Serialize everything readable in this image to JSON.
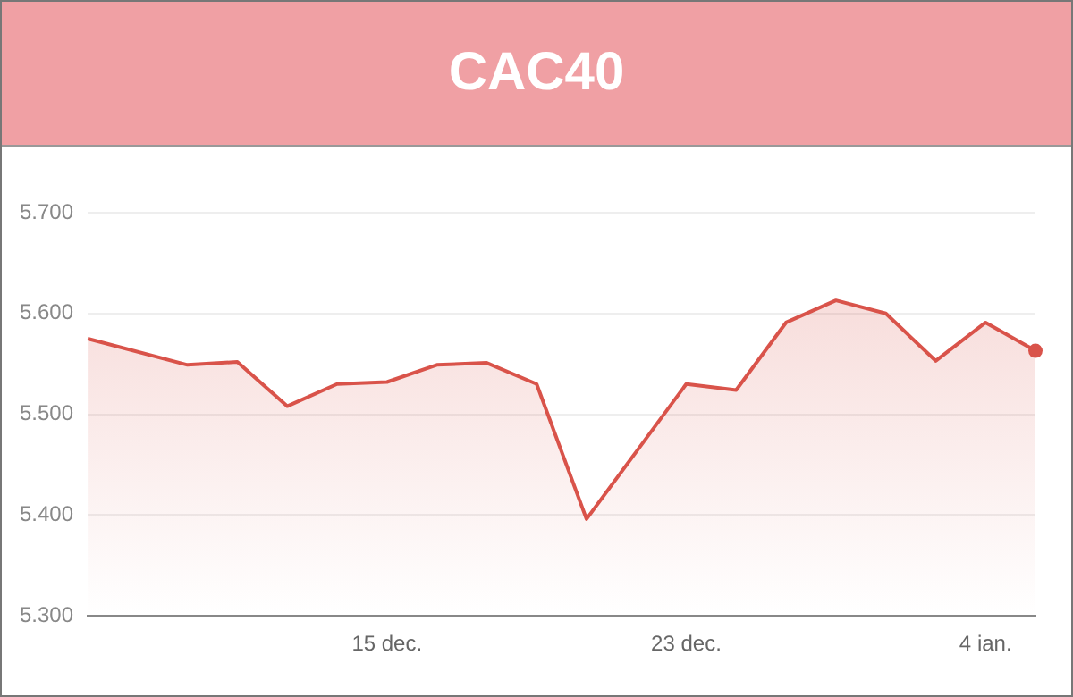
{
  "chart_data": {
    "type": "area",
    "title": "CAC40",
    "categories": [
      null,
      null,
      null,
      null,
      null,
      null,
      "15 dec.",
      null,
      null,
      null,
      null,
      null,
      "23 dec.",
      null,
      null,
      null,
      null,
      null,
      "4 ian.",
      null
    ],
    "series": [
      {
        "color": "#d9534a",
        "values": [
          5575,
          null,
          5549,
          5552,
          5508,
          5530,
          5532,
          5549,
          5551,
          5530,
          5396,
          5463,
          5530,
          5524,
          5591,
          5613,
          5600,
          5553,
          5591,
          5563
        ]
      }
    ],
    "ylim": [
      5300,
      5700
    ],
    "yticks": [
      {
        "value": 5300,
        "label": "5.300"
      },
      {
        "value": 5400,
        "label": "5.400"
      },
      {
        "value": 5500,
        "label": "5.500"
      },
      {
        "value": 5600,
        "label": "5.600"
      },
      {
        "value": 5700,
        "label": "5.700"
      }
    ],
    "grid": "y",
    "legend": false,
    "marker": "none",
    "line_style": "solid"
  }
}
